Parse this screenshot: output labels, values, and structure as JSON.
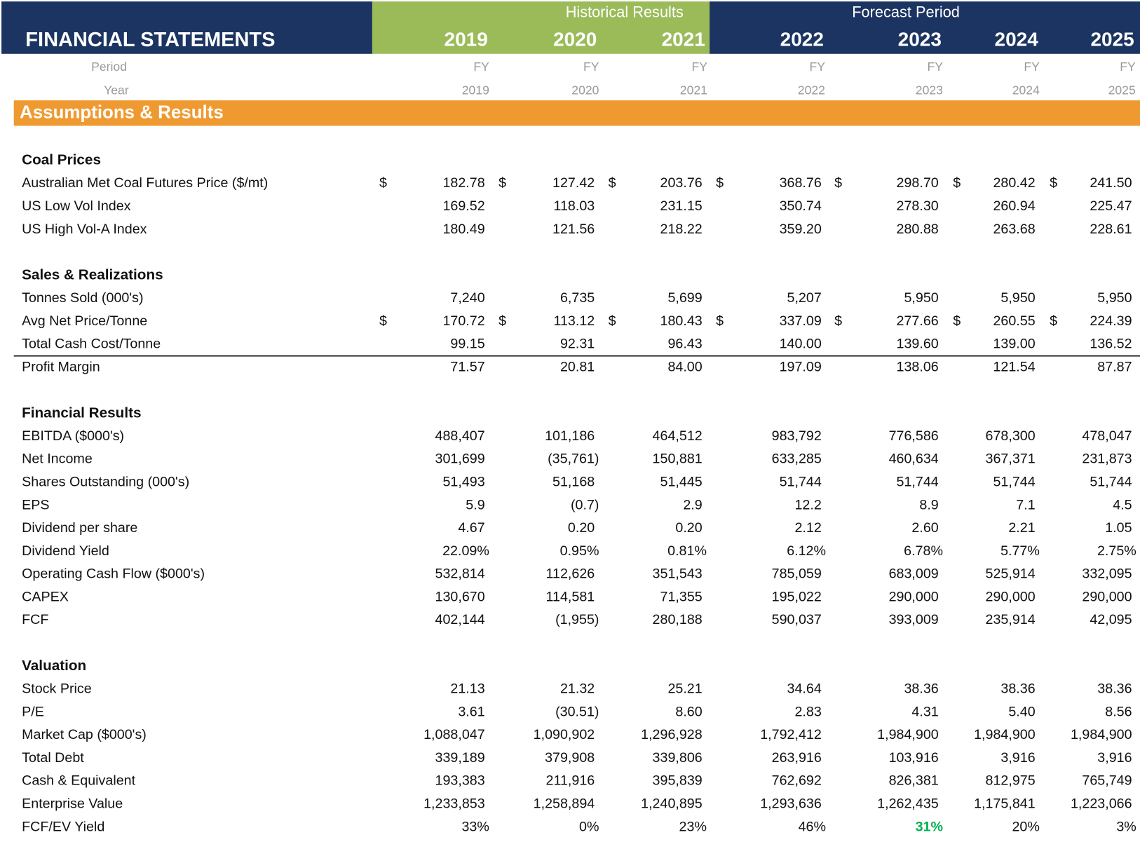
{
  "header": {
    "title": "FINANCIAL STATEMENTS",
    "groups": [
      {
        "label": "Historical Results"
      },
      {
        "label": "Forecast Period"
      }
    ],
    "years": [
      "2019",
      "2020",
      "2021",
      "2022",
      "2023",
      "2024",
      "2025"
    ]
  },
  "period_row": {
    "label": "Period",
    "values": [
      "FY",
      "FY",
      "FY",
      "FY",
      "FY",
      "FY",
      "FY"
    ]
  },
  "year_row": {
    "label": "Year",
    "values": [
      "2019",
      "2020",
      "2021",
      "2022",
      "2023",
      "2024",
      "2025"
    ]
  },
  "section": "Assumptions & Results",
  "groups": [
    {
      "title": "Coal Prices",
      "rows": [
        {
          "label": "Australian Met Coal Futures Price ($/mt)",
          "currency": "$",
          "values": [
            "182.78",
            "127.42",
            "203.76",
            "368.76",
            "298.70",
            "280.42",
            "241.50"
          ]
        },
        {
          "label": "US Low Vol Index",
          "values": [
            "169.52",
            "118.03",
            "231.15",
            "350.74",
            "278.30",
            "260.94",
            "225.47"
          ]
        },
        {
          "label": "US High Vol-A Index",
          "values": [
            "180.49",
            "121.56",
            "218.22",
            "359.20",
            "280.88",
            "263.68",
            "228.61"
          ]
        }
      ]
    },
    {
      "title": "Sales & Realizations",
      "rows": [
        {
          "label": "Tonnes Sold (000's)",
          "values": [
            "7,240",
            "6,735",
            "5,699",
            "5,207",
            "5,950",
            "5,950",
            "5,950"
          ]
        },
        {
          "label": "Avg Net Price/Tonne",
          "currency": "$",
          "values": [
            "170.72",
            "113.12",
            "180.43",
            "337.09",
            "277.66",
            "260.55",
            "224.39"
          ]
        },
        {
          "label": "Total Cash Cost/Tonne",
          "values": [
            "99.15",
            "92.31",
            "96.43",
            "140.00",
            "139.60",
            "139.00",
            "136.52"
          ]
        },
        {
          "label": "Profit Margin",
          "rule_above": true,
          "values": [
            "71.57",
            "20.81",
            "84.00",
            "197.09",
            "138.06",
            "121.54",
            "87.87"
          ]
        }
      ]
    },
    {
      "title": "Financial Results",
      "rows": [
        {
          "label": "EBITDA ($000's)",
          "values": [
            "488,407",
            "101,186",
            "464,512",
            "983,792",
            "776,586",
            "678,300",
            "478,047"
          ]
        },
        {
          "label": "Net Income",
          "values": [
            "301,699",
            "(35,761)",
            "150,881",
            "633,285",
            "460,634",
            "367,371",
            "231,873"
          ]
        },
        {
          "label": "Shares Outstanding (000's)",
          "values": [
            "51,493",
            "51,168",
            "51,445",
            "51,744",
            "51,744",
            "51,744",
            "51,744"
          ]
        },
        {
          "label": "EPS",
          "values": [
            "5.9",
            "(0.7)",
            "2.9",
            "12.2",
            "8.9",
            "7.1",
            "4.5"
          ]
        },
        {
          "label": "Dividend per share",
          "values": [
            "4.67",
            "0.20",
            "0.20",
            "2.12",
            "2.60",
            "2.21",
            "1.05"
          ]
        },
        {
          "label": "Dividend Yield",
          "values": [
            "22.09%",
            "0.95%",
            "0.81%",
            "6.12%",
            "6.78%",
            "5.77%",
            "2.75%"
          ]
        },
        {
          "label": "Operating Cash Flow ($000's)",
          "values": [
            "532,814",
            "112,626",
            "351,543",
            "785,059",
            "683,009",
            "525,914",
            "332,095"
          ]
        },
        {
          "label": "CAPEX",
          "values": [
            "130,670",
            "114,581",
            "71,355",
            "195,022",
            "290,000",
            "290,000",
            "290,000"
          ]
        },
        {
          "label": "FCF",
          "values": [
            "402,144",
            "(1,955)",
            "280,188",
            "590,037",
            "393,009",
            "235,914",
            "42,095"
          ]
        }
      ]
    },
    {
      "title": "Valuation",
      "rows": [
        {
          "label": "Stock Price",
          "values": [
            "21.13",
            "21.32",
            "25.21",
            "34.64",
            "38.36",
            "38.36",
            "38.36"
          ]
        },
        {
          "label": "P/E",
          "values": [
            "3.61",
            "(30.51)",
            "8.60",
            "2.83",
            "4.31",
            "5.40",
            "8.56"
          ]
        },
        {
          "label": "Market Cap ($000's)",
          "values": [
            "1,088,047",
            "1,090,902",
            "1,296,928",
            "1,792,412",
            "1,984,900",
            "1,984,900",
            "1,984,900"
          ]
        },
        {
          "label": "Total Debt",
          "values": [
            "339,189",
            "379,908",
            "339,806",
            "263,916",
            "103,916",
            "3,916",
            "3,916"
          ]
        },
        {
          "label": "Cash & Equivalent",
          "values": [
            "193,383",
            "211,916",
            "395,839",
            "762,692",
            "826,381",
            "812,975",
            "765,749"
          ]
        },
        {
          "label": "Enterprise Value",
          "values": [
            "1,233,853",
            "1,258,894",
            "1,240,895",
            "1,293,636",
            "1,262,435",
            "1,175,841",
            "1,223,066"
          ]
        },
        {
          "label": "FCF/EV Yield",
          "highlight": {
            "index": 4,
            "color": "#00b050"
          },
          "values": [
            "33%",
            "0%",
            "23%",
            "46%",
            "31%",
            "20%",
            "3%"
          ]
        }
      ]
    }
  ]
}
